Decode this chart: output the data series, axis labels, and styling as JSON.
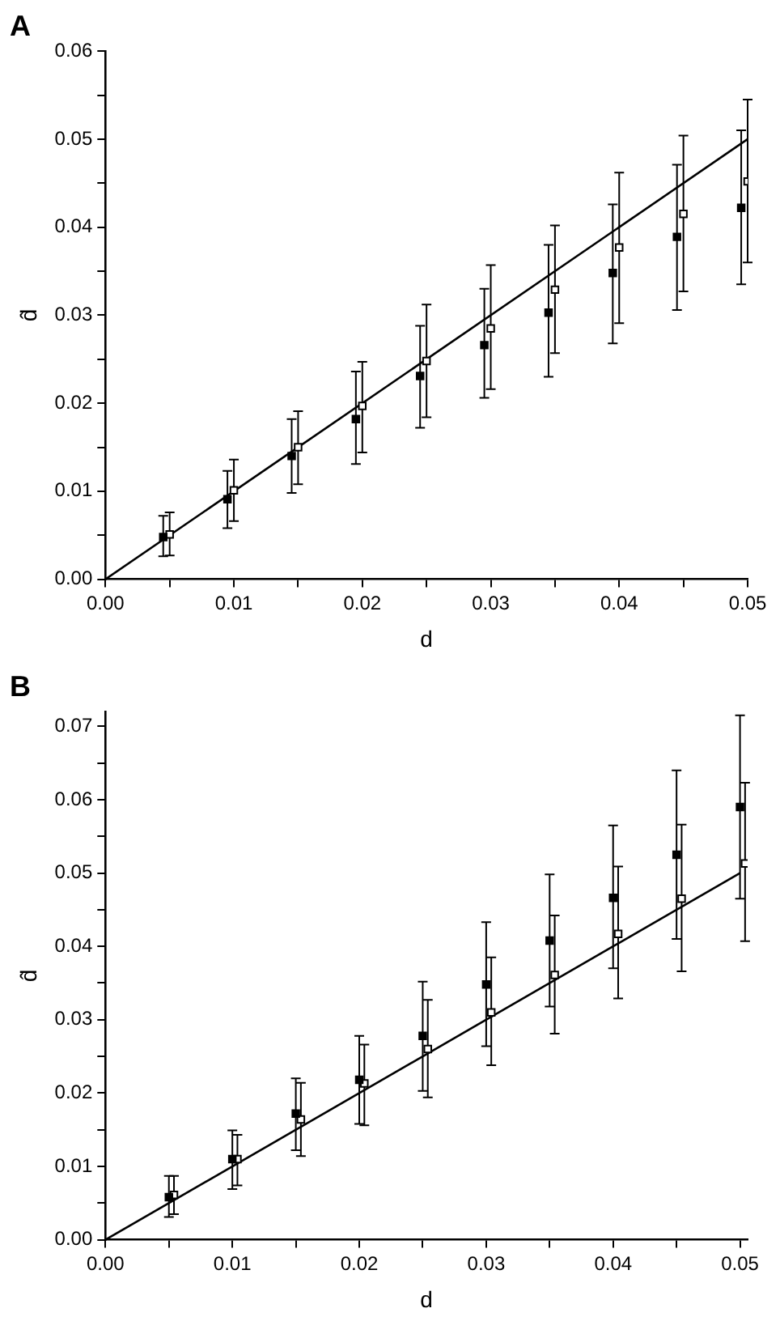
{
  "chart_data": [
    {
      "type": "scatter",
      "title": "A",
      "xlabel": "d",
      "ylabel": "d̂",
      "xlim": [
        0,
        0.05
      ],
      "ylim": [
        0,
        0.06
      ],
      "xticks": [
        {
          "value": 0,
          "label": "0.00"
        },
        {
          "value": 0.005,
          "label": null
        },
        {
          "value": 0.01,
          "label": "0.01"
        },
        {
          "value": 0.015,
          "label": null
        },
        {
          "value": 0.02,
          "label": "0.02"
        },
        {
          "value": 0.025,
          "label": null
        },
        {
          "value": 0.03,
          "label": "0.03"
        },
        {
          "value": 0.035,
          "label": null
        },
        {
          "value": 0.04,
          "label": "0.04"
        },
        {
          "value": 0.045,
          "label": null
        },
        {
          "value": 0.05,
          "label": "0.05"
        }
      ],
      "yticks": [
        {
          "value": 0,
          "label": "0.00"
        },
        {
          "value": 0.005,
          "label": null
        },
        {
          "value": 0.01,
          "label": "0.01"
        },
        {
          "value": 0.015,
          "label": null
        },
        {
          "value": 0.02,
          "label": "0.02"
        },
        {
          "value": 0.025,
          "label": null
        },
        {
          "value": 0.03,
          "label": "0.03"
        },
        {
          "value": 0.035,
          "label": null
        },
        {
          "value": 0.04,
          "label": "0.04"
        },
        {
          "value": 0.045,
          "label": null
        },
        {
          "value": 0.05,
          "label": "0.05"
        },
        {
          "value": 0.055,
          "label": null
        },
        {
          "value": 0.06,
          "label": "0.06"
        }
      ],
      "grid": false,
      "legend": false,
      "marker": "square",
      "series": [
        {
          "color": "#000000",
          "x": [
            0.0045,
            0.0095,
            0.0145,
            0.0195,
            0.0245,
            0.0295,
            0.0345,
            0.0395,
            0.0445,
            0.0495
          ],
          "values": [
            0.0048,
            0.0091,
            0.014,
            0.0182,
            0.0231,
            0.0266,
            0.0303,
            0.0348,
            0.0389,
            0.0422
          ],
          "errors": [
            [
              0.0026,
              0.0072
            ],
            [
              0.0058,
              0.0123
            ],
            [
              0.0098,
              0.0182
            ],
            [
              0.0131,
              0.0236
            ],
            [
              0.0172,
              0.0288
            ],
            [
              0.0206,
              0.033
            ],
            [
              0.023,
              0.038
            ],
            [
              0.0268,
              0.0426
            ],
            [
              0.0306,
              0.0471
            ],
            [
              0.0335,
              0.051
            ]
          ]
        },
        {
          "color": "#ffffff",
          "x": [
            0.005,
            0.01,
            0.015,
            0.02,
            0.025,
            0.03,
            0.035,
            0.04,
            0.045,
            0.05
          ],
          "values": [
            0.0051,
            0.0101,
            0.015,
            0.0197,
            0.0248,
            0.0285,
            0.0329,
            0.0377,
            0.0415,
            0.0452
          ],
          "errors": [
            [
              0.0027,
              0.0076
            ],
            [
              0.0066,
              0.0136
            ],
            [
              0.0108,
              0.0191
            ],
            [
              0.0144,
              0.0247
            ],
            [
              0.0184,
              0.0312
            ],
            [
              0.0216,
              0.0357
            ],
            [
              0.0257,
              0.0402
            ],
            [
              0.0291,
              0.0462
            ],
            [
              0.0327,
              0.0504
            ],
            [
              0.036,
              0.0545
            ]
          ]
        },
        {
          "type": "line",
          "color": "#000000",
          "marker": "none",
          "x": [
            0,
            0.05
          ],
          "values": [
            0,
            0.05
          ]
        }
      ]
    },
    {
      "type": "scatter",
      "title": "B",
      "xlabel": "d",
      "ylabel": "d̂",
      "xlim": [
        0,
        0.0506
      ],
      "ylim": [
        0,
        0.072
      ],
      "xticks": [
        {
          "value": 0,
          "label": "0.00"
        },
        {
          "value": 0.005,
          "label": null
        },
        {
          "value": 0.01,
          "label": "0.01"
        },
        {
          "value": 0.015,
          "label": null
        },
        {
          "value": 0.02,
          "label": "0.02"
        },
        {
          "value": 0.025,
          "label": null
        },
        {
          "value": 0.03,
          "label": "0.03"
        },
        {
          "value": 0.035,
          "label": null
        },
        {
          "value": 0.04,
          "label": "0.04"
        },
        {
          "value": 0.045,
          "label": null
        },
        {
          "value": 0.05,
          "label": "0.05"
        }
      ],
      "yticks": [
        {
          "value": 0,
          "label": "0.00"
        },
        {
          "value": 0.005,
          "label": null
        },
        {
          "value": 0.01,
          "label": "0.01"
        },
        {
          "value": 0.015,
          "label": null
        },
        {
          "value": 0.02,
          "label": "0.02"
        },
        {
          "value": 0.025,
          "label": null
        },
        {
          "value": 0.03,
          "label": "0.03"
        },
        {
          "value": 0.035,
          "label": null
        },
        {
          "value": 0.04,
          "label": "0.04"
        },
        {
          "value": 0.045,
          "label": null
        },
        {
          "value": 0.05,
          "label": "0.05"
        },
        {
          "value": 0.055,
          "label": null
        },
        {
          "value": 0.06,
          "label": "0.06"
        },
        {
          "value": 0.065,
          "label": null
        },
        {
          "value": 0.07,
          "label": "0.07"
        }
      ],
      "grid": false,
      "legend": false,
      "marker": "square",
      "series": [
        {
          "color": "#000000",
          "x": [
            0.005,
            0.01,
            0.015,
            0.02,
            0.025,
            0.03,
            0.035,
            0.04,
            0.045,
            0.05
          ],
          "values": [
            0.0058,
            0.011,
            0.0172,
            0.0218,
            0.0278,
            0.0348,
            0.0408,
            0.0466,
            0.0525,
            0.059
          ],
          "errors": [
            [
              0.0031,
              0.0087
            ],
            [
              0.0069,
              0.0149
            ],
            [
              0.0122,
              0.022
            ],
            [
              0.0158,
              0.0278
            ],
            [
              0.0203,
              0.0352
            ],
            [
              0.0264,
              0.0433
            ],
            [
              0.0318,
              0.0498
            ],
            [
              0.037,
              0.0565
            ],
            [
              0.041,
              0.064
            ],
            [
              0.0465,
              0.0715
            ]
          ]
        },
        {
          "color": "#ffffff",
          "x": [
            0.0054,
            0.0104,
            0.0154,
            0.0204,
            0.0254,
            0.0304,
            0.0354,
            0.0404,
            0.0454,
            0.0504
          ],
          "values": [
            0.0061,
            0.011,
            0.0164,
            0.0213,
            0.026,
            0.031,
            0.0361,
            0.0417,
            0.0465,
            0.0513
          ],
          "errors": [
            [
              0.0035,
              0.0087
            ],
            [
              0.0074,
              0.0143
            ],
            [
              0.0114,
              0.0214
            ],
            [
              0.0156,
              0.0266
            ],
            [
              0.0194,
              0.0327
            ],
            [
              0.0238,
              0.0385
            ],
            [
              0.0281,
              0.0442
            ],
            [
              0.0329,
              0.0509
            ],
            [
              0.0366,
              0.0566
            ],
            [
              0.0407,
              0.0623
            ]
          ]
        },
        {
          "type": "line",
          "color": "#000000",
          "marker": "none",
          "x": [
            0,
            0.05
          ],
          "values": [
            0,
            0.05
          ]
        }
      ]
    }
  ]
}
